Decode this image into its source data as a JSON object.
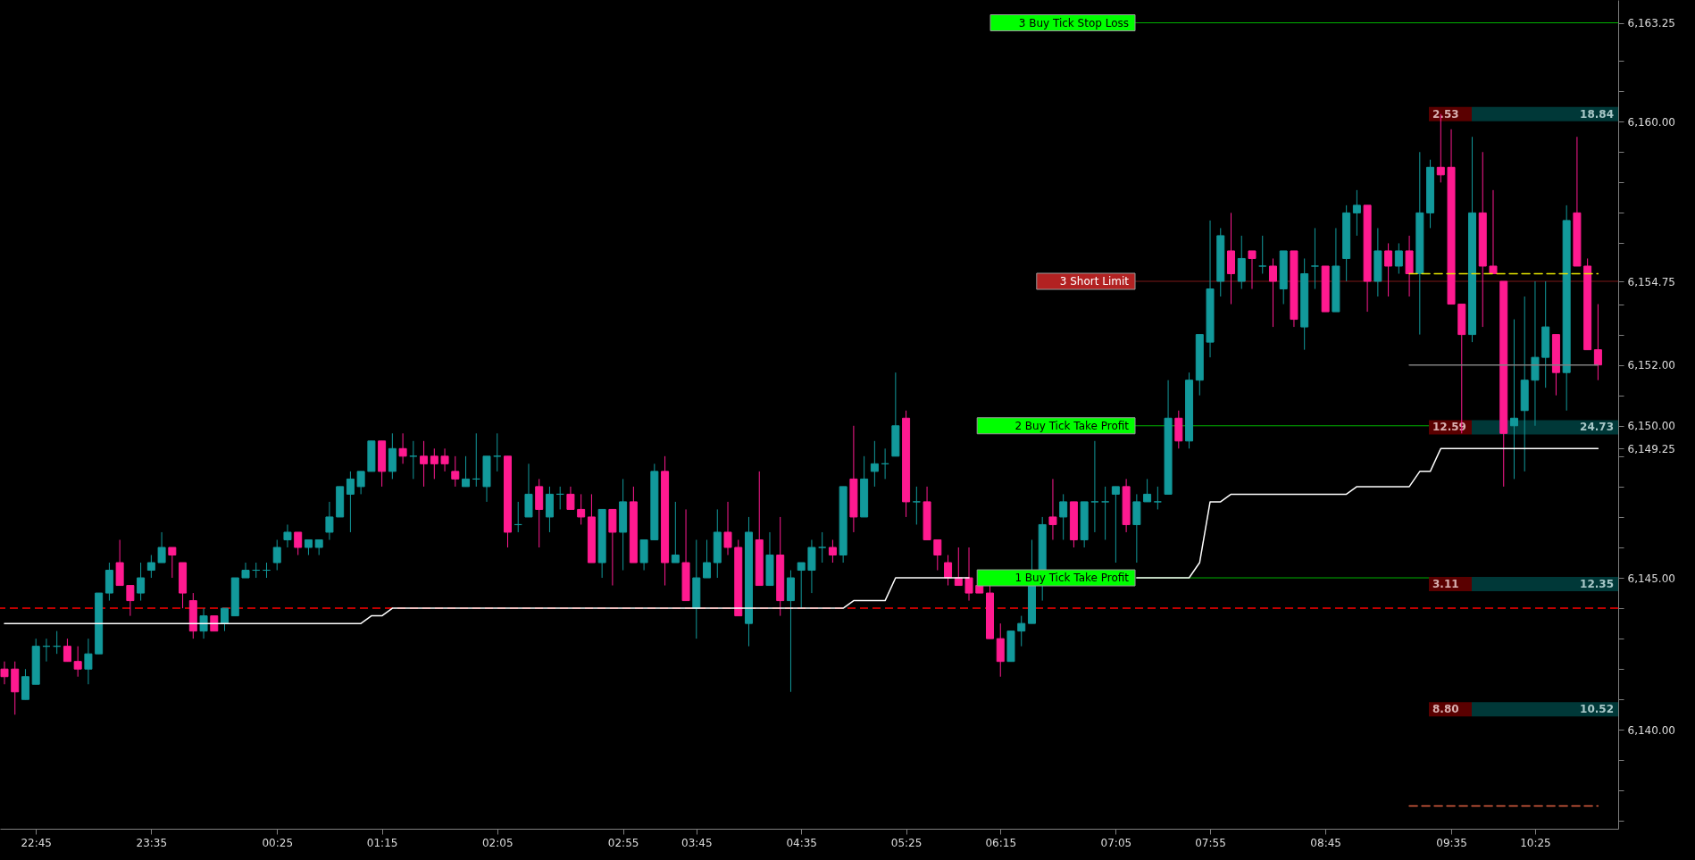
{
  "chart_data": {
    "type": "candlestick",
    "categories": [
      null,
      null,
      null,
      "22:45",
      null,
      null,
      null,
      null,
      null,
      null,
      null,
      null,
      null,
      null,
      "23:35",
      null,
      null,
      null,
      null,
      null,
      null,
      null,
      null,
      null,
      null,
      null,
      "00:25",
      null,
      null,
      null,
      null,
      null,
      null,
      null,
      null,
      null,
      "01:15",
      null,
      null,
      null,
      null,
      null,
      null,
      null,
      null,
      null,
      null,
      "02:05",
      null,
      null,
      null,
      null,
      null,
      null,
      null,
      null,
      null,
      null,
      null,
      "02:55",
      null,
      null,
      null,
      null,
      null,
      null,
      "03:45",
      null,
      null,
      null,
      null,
      null,
      null,
      null,
      null,
      null,
      "04:35",
      null,
      null,
      null,
      null,
      null,
      null,
      null,
      null,
      null,
      "05:25",
      null,
      null,
      null,
      null,
      null,
      null,
      null,
      null,
      "06:15",
      null,
      null,
      null,
      null,
      null,
      null,
      null,
      null,
      null,
      null,
      "07:05",
      null,
      null,
      null,
      null,
      null,
      null,
      null,
      null,
      "07:55",
      null,
      null,
      null,
      null,
      null,
      null,
      null,
      null,
      null,
      null,
      "08:45",
      null,
      null,
      null,
      null,
      null,
      null,
      null,
      null,
      null,
      null,
      null,
      "09:35",
      null,
      null,
      null,
      null,
      null,
      null,
      null,
      "10:25",
      null,
      null,
      null,
      null,
      null,
      null
    ],
    "ohlc": [
      [
        6142.0,
        6142.25,
        6141.5,
        6141.75
      ],
      [
        6142.0,
        6142.25,
        6140.5,
        6141.25
      ],
      [
        6141.0,
        6142.0,
        6141.0,
        6141.75
      ],
      [
        6141.5,
        6143.0,
        6141.5,
        6142.75
      ],
      [
        6142.75,
        6143.0,
        6142.25,
        6142.75
      ],
      [
        6142.75,
        6143.25,
        6142.5,
        6142.75
      ],
      [
        6142.75,
        6143.0,
        6142.25,
        6142.25
      ],
      [
        6142.25,
        6142.75,
        6141.75,
        6142.0
      ],
      [
        6142.0,
        6143.0,
        6141.5,
        6142.5
      ],
      [
        6142.5,
        6144.5,
        6142.5,
        6144.5
      ],
      [
        6144.5,
        6145.5,
        6144.25,
        6145.25
      ],
      [
        6145.5,
        6146.25,
        6144.75,
        6144.75
      ],
      [
        6144.75,
        6144.75,
        6143.75,
        6144.25
      ],
      [
        6144.5,
        6145.5,
        6144.25,
        6145.0
      ],
      [
        6145.25,
        6145.75,
        6145.0,
        6145.5
      ],
      [
        6145.5,
        6146.5,
        6145.5,
        6146.0
      ],
      [
        6146.0,
        6146.0,
        6145.0,
        6145.75
      ],
      [
        6145.5,
        6145.5,
        6144.0,
        6144.5
      ],
      [
        6144.25,
        6144.5,
        6143.0,
        6143.25
      ],
      [
        6143.25,
        6144.0,
        6143.0,
        6143.75
      ],
      [
        6143.75,
        6143.75,
        6143.25,
        6143.25
      ],
      [
        6143.5,
        6144.0,
        6143.25,
        6144.0
      ],
      [
        6143.75,
        6145.0,
        6143.75,
        6145.0
      ],
      [
        6145.0,
        6145.5,
        6145.0,
        6145.25
      ],
      [
        6145.25,
        6145.5,
        6145.0,
        6145.25
      ],
      [
        6145.25,
        6145.5,
        6145.0,
        6145.25
      ],
      [
        6145.5,
        6146.25,
        6145.25,
        6146.0
      ],
      [
        6146.25,
        6146.75,
        6146.0,
        6146.5
      ],
      [
        6146.5,
        6146.5,
        6145.75,
        6146.0
      ],
      [
        6146.0,
        6146.25,
        6145.75,
        6146.25
      ],
      [
        6146.0,
        6146.25,
        6145.75,
        6146.25
      ],
      [
        6146.5,
        6147.5,
        6146.25,
        6147.0
      ],
      [
        6147.0,
        6148.0,
        6147.0,
        6148.0
      ],
      [
        6147.75,
        6148.5,
        6146.5,
        6148.25
      ],
      [
        6148.0,
        6148.5,
        6147.75,
        6148.5
      ],
      [
        6148.5,
        6149.5,
        6148.5,
        6149.5
      ],
      [
        6149.5,
        6149.5,
        6148.0,
        6148.5
      ],
      [
        6148.5,
        6149.75,
        6148.25,
        6149.25
      ],
      [
        6149.25,
        6149.75,
        6148.75,
        6149.0
      ],
      [
        6149.0,
        6149.5,
        6148.25,
        6149.0
      ],
      [
        6149.0,
        6149.5,
        6148.0,
        6148.75
      ],
      [
        6149.0,
        6149.25,
        6148.25,
        6148.75
      ],
      [
        6149.0,
        6149.25,
        6148.5,
        6148.75
      ],
      [
        6148.5,
        6149.0,
        6148.0,
        6148.25
      ],
      [
        6148.0,
        6149.0,
        6148.0,
        6148.25
      ],
      [
        6148.25,
        6149.75,
        6148.0,
        6148.25
      ],
      [
        6148.0,
        6149.0,
        6147.5,
        6149.0
      ],
      [
        6149.0,
        6149.75,
        6148.5,
        6149.0
      ],
      [
        6149.0,
        6149.0,
        6146.0,
        6146.5
      ],
      [
        6146.75,
        6147.5,
        6146.5,
        6146.75
      ],
      [
        6147.0,
        6148.75,
        6147.0,
        6147.75
      ],
      [
        6148.0,
        6148.25,
        6146.0,
        6147.25
      ],
      [
        6147.0,
        6148.0,
        6146.5,
        6147.75
      ],
      [
        6147.75,
        6148.0,
        6147.25,
        6147.75
      ],
      [
        6147.75,
        6148.0,
        6147.25,
        6147.25
      ],
      [
        6147.25,
        6147.75,
        6146.75,
        6147.0
      ],
      [
        6147.0,
        6147.75,
        6145.5,
        6145.5
      ],
      [
        6145.5,
        6147.25,
        6145.0,
        6147.25
      ],
      [
        6147.25,
        6147.25,
        6144.75,
        6146.5
      ],
      [
        6146.5,
        6148.25,
        6145.25,
        6147.5
      ],
      [
        6147.5,
        6148.0,
        6145.5,
        6145.5
      ],
      [
        6145.5,
        6146.25,
        6145.25,
        6146.25
      ],
      [
        6146.25,
        6148.75,
        6146.25,
        6148.5
      ],
      [
        6148.5,
        6149.0,
        6144.75,
        6145.5
      ],
      [
        6145.5,
        6147.5,
        6145.5,
        6145.75
      ],
      [
        6145.5,
        6147.25,
        6144.25,
        6144.25
      ],
      [
        6144.0,
        6146.25,
        6143.0,
        6145.0
      ],
      [
        6145.0,
        6146.25,
        6145.0,
        6145.5
      ],
      [
        6145.5,
        6147.25,
        6145.0,
        6146.5
      ],
      [
        6146.5,
        6147.5,
        6145.75,
        6146.0
      ],
      [
        6146.0,
        6146.25,
        6143.75,
        6143.75
      ],
      [
        6143.5,
        6147.0,
        6142.75,
        6146.5
      ],
      [
        6146.25,
        6148.5,
        6144.75,
        6144.75
      ],
      [
        6144.75,
        6146.5,
        6144.75,
        6145.75
      ],
      [
        6145.75,
        6147.0,
        6143.75,
        6144.25
      ],
      [
        6144.25,
        6145.25,
        6141.25,
        6145.0
      ],
      [
        6145.25,
        6145.5,
        6144.0,
        6145.5
      ],
      [
        6145.25,
        6146.25,
        6144.5,
        6146.0
      ],
      [
        6146.0,
        6146.5,
        6145.5,
        6146.0
      ],
      [
        6146.0,
        6146.25,
        6145.5,
        6145.75
      ],
      [
        6145.75,
        6148.0,
        6145.5,
        6148.0
      ],
      [
        6148.25,
        6150.0,
        6146.5,
        6147.0
      ],
      [
        6147.0,
        6149.0,
        6147.0,
        6148.25
      ],
      [
        6148.5,
        6149.5,
        6148.0,
        6148.75
      ],
      [
        6148.75,
        6149.25,
        6148.25,
        6148.75
      ],
      [
        6149.0,
        6151.75,
        6149.0,
        6150.0
      ],
      [
        6150.25,
        6150.5,
        6147.0,
        6147.5
      ],
      [
        6147.5,
        6148.0,
        6146.75,
        6147.5
      ],
      [
        6147.5,
        6148.0,
        6146.25,
        6146.25
      ],
      [
        6146.25,
        6146.25,
        6145.25,
        6145.75
      ],
      [
        6145.5,
        6145.75,
        6144.75,
        6145.0
      ],
      [
        6145.0,
        6146.0,
        6144.75,
        6144.75
      ],
      [
        6145.0,
        6146.0,
        6144.25,
        6144.5
      ],
      [
        6144.75,
        6144.75,
        6144.5,
        6144.5
      ],
      [
        6144.5,
        6144.75,
        6143.0,
        6143.0
      ],
      [
        6143.0,
        6143.5,
        6141.75,
        6142.25
      ],
      [
        6142.25,
        6143.25,
        6142.25,
        6143.25
      ],
      [
        6143.25,
        6143.75,
        6142.75,
        6143.5
      ],
      [
        6143.5,
        6146.25,
        6143.5,
        6144.75
      ],
      [
        6144.75,
        6147.0,
        6144.25,
        6146.75
      ],
      [
        6147.0,
        6148.25,
        6146.25,
        6146.75
      ],
      [
        6147.0,
        6147.75,
        6146.25,
        6147.5
      ],
      [
        6147.5,
        6147.5,
        6146.0,
        6146.25
      ],
      [
        6146.25,
        6147.5,
        6146.0,
        6147.5
      ],
      [
        6147.5,
        6149.5,
        6146.5,
        6147.5
      ],
      [
        6147.5,
        6148.0,
        6146.25,
        6147.5
      ],
      [
        6147.75,
        6148.0,
        6145.5,
        6148.0
      ],
      [
        6148.0,
        6148.25,
        6146.5,
        6146.75
      ],
      [
        6146.75,
        6147.75,
        6145.5,
        6147.5
      ],
      [
        6147.5,
        6148.25,
        6147.5,
        6147.75
      ],
      [
        6147.5,
        6148.0,
        6147.25,
        6147.5
      ],
      [
        6147.75,
        6151.5,
        6147.75,
        6150.25
      ],
      [
        6150.25,
        6150.5,
        6149.25,
        6149.5
      ],
      [
        6149.5,
        6151.75,
        6149.25,
        6151.5
      ],
      [
        6151.5,
        6153.0,
        6151.0,
        6153.0
      ],
      [
        6152.75,
        6156.75,
        6152.25,
        6154.5
      ],
      [
        6154.75,
        6156.5,
        6154.25,
        6156.25
      ],
      [
        6155.75,
        6157.0,
        6154.0,
        6155.0
      ],
      [
        6154.75,
        6156.25,
        6154.5,
        6155.5
      ],
      [
        6155.75,
        6155.75,
        6154.5,
        6155.5
      ],
      [
        6155.25,
        6156.25,
        6155.0,
        6155.25
      ],
      [
        6155.25,
        6155.5,
        6153.25,
        6154.75
      ],
      [
        6154.5,
        6155.75,
        6154.0,
        6155.75
      ],
      [
        6155.75,
        6155.75,
        6153.25,
        6153.5
      ],
      [
        6153.25,
        6155.5,
        6152.5,
        6155.0
      ],
      [
        6155.25,
        6156.5,
        6154.5,
        6155.25
      ],
      [
        6155.25,
        6155.25,
        6153.75,
        6153.75
      ],
      [
        6153.75,
        6156.5,
        6153.75,
        6155.25
      ],
      [
        6155.5,
        6157.25,
        6154.75,
        6157.0
      ],
      [
        6157.0,
        6157.75,
        6156.25,
        6157.25
      ],
      [
        6157.25,
        6157.25,
        6153.75,
        6154.75
      ],
      [
        6154.75,
        6156.5,
        6154.25,
        6155.75
      ],
      [
        6155.75,
        6156.0,
        6154.25,
        6155.25
      ],
      [
        6155.25,
        6156.0,
        6155.0,
        6155.75
      ],
      [
        6155.75,
        6156.25,
        6154.25,
        6155.0
      ],
      [
        6155.0,
        6159.0,
        6153.0,
        6157.0
      ],
      [
        6157.0,
        6158.75,
        6156.5,
        6158.5
      ],
      [
        6158.5,
        6160.25,
        6158.0,
        6158.25
      ],
      [
        6158.5,
        6159.75,
        6154.0,
        6154.0
      ],
      [
        6154.0,
        6154.0,
        6149.75,
        6153.0
      ],
      [
        6153.0,
        6159.5,
        6152.75,
        6157.0
      ],
      [
        6157.0,
        6159.0,
        6153.25,
        6155.25
      ],
      [
        6155.25,
        6157.75,
        6155.0,
        6155.0
      ],
      [
        6154.75,
        6154.75,
        6148.0,
        6149.75
      ],
      [
        6150.0,
        6153.5,
        6148.25,
        6150.25
      ],
      [
        6150.5,
        6154.25,
        6148.5,
        6151.5
      ],
      [
        6151.5,
        6154.75,
        6150.0,
        6152.25
      ],
      [
        6152.25,
        6154.75,
        6151.25,
        6153.25
      ],
      [
        6153.0,
        6153.0,
        6151.0,
        6151.75
      ],
      [
        6151.75,
        6157.25,
        6150.5,
        6156.75
      ],
      [
        6157.0,
        6159.5,
        6155.25,
        6155.25
      ],
      [
        6155.25,
        6155.5,
        6152.5,
        6152.5
      ],
      [
        6152.5,
        6154.0,
        6151.5,
        6152.0
      ]
    ],
    "series": [
      {
        "type": "line",
        "color": "#ffffff",
        "values": [
          6143.5,
          6143.5,
          6143.5,
          6143.5,
          6143.5,
          6143.5,
          6143.5,
          6143.5,
          6143.5,
          6143.5,
          6143.5,
          6143.5,
          6143.5,
          6143.5,
          6143.5,
          6143.5,
          6143.5,
          6143.5,
          6143.5,
          6143.5,
          6143.5,
          6143.5,
          6143.5,
          6143.5,
          6143.5,
          6143.5,
          6143.5,
          6143.5,
          6143.5,
          6143.5,
          6143.5,
          6143.5,
          6143.5,
          6143.5,
          6143.5,
          6143.75,
          6143.75,
          6144,
          6144,
          6144,
          6144,
          6144,
          6144,
          6144,
          6144,
          6144,
          6144,
          6144,
          6144,
          6144,
          6144,
          6144,
          6144,
          6144,
          6144,
          6144,
          6144,
          6144,
          6144,
          6144,
          6144,
          6144,
          6144,
          6144,
          6144,
          6144,
          6144,
          6144,
          6144,
          6144,
          6144,
          6144,
          6144,
          6144,
          6144,
          6144,
          6144,
          6144,
          6144,
          6144,
          6144,
          6144.25,
          6144.25,
          6144.25,
          6144.25,
          6145,
          6145,
          6145,
          6145,
          6145,
          6145,
          6145,
          6145,
          null,
          null,
          null,
          null,
          null,
          null,
          null,
          null,
          null,
          null,
          null,
          null,
          null,
          null,
          null,
          6145,
          6145,
          6145,
          6145,
          6145,
          6145,
          6145.5,
          6147.5,
          6147.5,
          6147.75,
          6147.75,
          6147.75,
          6147.75,
          6147.75,
          6147.75,
          6147.75,
          6147.75,
          6147.75,
          6147.75,
          6147.75,
          6147.75,
          6148,
          6148,
          6148,
          6148,
          6148,
          6148,
          6148.5,
          6148.5,
          6149.25,
          6149.25,
          6149.25,
          6149.25,
          6149.25,
          6149.25,
          6149.25,
          6149.25,
          6149.25,
          6149.25,
          6149.25,
          6149.25,
          6149.25,
          6149.25,
          6149.25,
          6149.25
        ]
      },
      {
        "type": "line",
        "color": "#e6e600",
        "line_style": "dashed",
        "values": [
          null,
          null,
          null,
          null,
          null,
          null,
          null,
          null,
          null,
          null,
          null,
          null,
          null,
          null,
          null,
          null,
          null,
          null,
          null,
          null,
          null,
          null,
          null,
          null,
          null,
          null,
          null,
          null,
          null,
          null,
          null,
          null,
          null,
          null,
          null,
          null,
          null,
          null,
          null,
          null,
          null,
          null,
          null,
          null,
          null,
          null,
          null,
          null,
          null,
          null,
          null,
          null,
          null,
          null,
          null,
          null,
          null,
          null,
          null,
          null,
          null,
          null,
          null,
          null,
          null,
          null,
          null,
          null,
          null,
          null,
          null,
          null,
          null,
          null,
          null,
          null,
          null,
          null,
          null,
          null,
          null,
          null,
          null,
          null,
          null,
          null,
          null,
          null,
          null,
          null,
          null,
          null,
          null,
          null,
          null,
          null,
          null,
          null,
          null,
          null,
          null,
          null,
          null,
          null,
          null,
          null,
          null,
          null,
          null,
          null,
          null,
          null,
          null,
          null,
          null,
          null,
          null,
          null,
          null,
          null,
          null,
          null,
          null,
          null,
          null,
          null,
          null,
          null,
          null,
          null,
          null,
          null,
          null,
          null,
          6155,
          6155,
          6155,
          6155,
          6155,
          6155,
          6155,
          6155,
          6155,
          6155,
          6155,
          6155,
          6155,
          6155,
          6155,
          6155,
          6155,
          6155,
          6155
        ]
      },
      {
        "type": "line",
        "color": "#808080",
        "values": [
          null,
          null,
          null,
          null,
          null,
          null,
          null,
          null,
          null,
          null,
          null,
          null,
          null,
          null,
          null,
          null,
          null,
          null,
          null,
          null,
          null,
          null,
          null,
          null,
          null,
          null,
          null,
          null,
          null,
          null,
          null,
          null,
          null,
          null,
          null,
          null,
          null,
          null,
          null,
          null,
          null,
          null,
          null,
          null,
          null,
          null,
          null,
          null,
          null,
          null,
          null,
          null,
          null,
          null,
          null,
          null,
          null,
          null,
          null,
          null,
          null,
          null,
          null,
          null,
          null,
          null,
          null,
          null,
          null,
          null,
          null,
          null,
          null,
          null,
          null,
          null,
          null,
          null,
          null,
          null,
          null,
          null,
          null,
          null,
          null,
          null,
          null,
          null,
          null,
          null,
          null,
          null,
          null,
          null,
          null,
          null,
          null,
          null,
          null,
          null,
          null,
          null,
          null,
          null,
          null,
          null,
          null,
          null,
          null,
          null,
          null,
          null,
          null,
          null,
          null,
          null,
          null,
          null,
          null,
          null,
          null,
          null,
          null,
          null,
          null,
          null,
          null,
          null,
          null,
          null,
          null,
          null,
          null,
          null,
          6152,
          6152,
          6152,
          6152,
          6152,
          6152,
          6152,
          6152,
          6152,
          6152,
          6152,
          6152,
          6152,
          6152,
          6152,
          6152,
          6152,
          6152,
          6152
        ]
      },
      {
        "type": "line",
        "color": "#e06040",
        "line_style": "dashed",
        "values": [
          null,
          null,
          null,
          null,
          null,
          null,
          null,
          null,
          null,
          null,
          null,
          null,
          null,
          null,
          null,
          null,
          null,
          null,
          null,
          null,
          null,
          null,
          null,
          null,
          null,
          null,
          null,
          null,
          null,
          null,
          null,
          null,
          null,
          null,
          null,
          null,
          null,
          null,
          null,
          null,
          null,
          null,
          null,
          null,
          null,
          null,
          null,
          null,
          null,
          null,
          null,
          null,
          null,
          null,
          null,
          null,
          null,
          null,
          null,
          null,
          null,
          null,
          null,
          null,
          null,
          null,
          null,
          null,
          null,
          null,
          null,
          null,
          null,
          null,
          null,
          null,
          null,
          null,
          null,
          null,
          null,
          null,
          null,
          null,
          null,
          null,
          null,
          null,
          null,
          null,
          null,
          null,
          null,
          null,
          null,
          null,
          null,
          null,
          null,
          null,
          null,
          null,
          null,
          null,
          null,
          null,
          null,
          null,
          null,
          null,
          null,
          null,
          null,
          null,
          null,
          null,
          null,
          null,
          null,
          null,
          null,
          null,
          null,
          null,
          null,
          null,
          null,
          null,
          null,
          null,
          null,
          null,
          null,
          null,
          6137.5,
          6137.5,
          6137.5,
          6137.5,
          6137.5,
          6137.5,
          6137.5,
          6137.5,
          6137.5,
          6137.5,
          6137.5,
          6137.5,
          6137.5,
          6137.5,
          6137.5,
          6137.5,
          6137.5,
          6137.5,
          6137.5
        ]
      }
    ],
    "ylim": [
      6136.75,
      6164
    ],
    "yticks": [
      {
        "value": 6137,
        "label": null
      },
      {
        "value": 6138,
        "label": null
      },
      {
        "value": 6139,
        "label": null
      },
      {
        "value": 6140,
        "label": "6,140.00"
      },
      {
        "value": 6141,
        "label": null
      },
      {
        "value": 6142,
        "label": null
      },
      {
        "value": 6143,
        "label": null
      },
      {
        "value": 6144,
        "label": null
      },
      {
        "value": 6145,
        "label": "6,145.00"
      },
      {
        "value": 6146,
        "label": null
      },
      {
        "value": 6147,
        "label": null
      },
      {
        "value": 6148,
        "label": null
      },
      {
        "value": 6149,
        "label": null
      },
      {
        "value": 6149.25,
        "label": "6,149.25"
      },
      {
        "value": 6150,
        "label": "6,150.00"
      },
      {
        "value": 6151,
        "label": null
      },
      {
        "value": 6152,
        "label": "6,152.00"
      },
      {
        "value": 6153,
        "label": null
      },
      {
        "value": 6154,
        "label": null
      },
      {
        "value": 6154.75,
        "label": "6,154.75"
      },
      {
        "value": 6156,
        "label": null
      },
      {
        "value": 6157,
        "label": null
      },
      {
        "value": 6158,
        "label": null
      },
      {
        "value": 6159,
        "label": null
      },
      {
        "value": 6160,
        "label": "6,160.00"
      },
      {
        "value": 6161,
        "label": null
      },
      {
        "value": 6162,
        "label": null
      },
      {
        "value": 6163.25,
        "label": "6,163.25"
      }
    ],
    "ref_lines": [
      {
        "axis": "y",
        "value": 6163.25,
        "label": "3 Buy Tick Stop Loss",
        "color": "#00ff00"
      },
      {
        "axis": "y",
        "value": 6154.75,
        "label": "3 Short Limit",
        "color": "#b22222"
      },
      {
        "axis": "y",
        "value": 6150,
        "label": "2 Buy Tick Take Profit",
        "color": "#00ff00"
      },
      {
        "axis": "y",
        "value": 6145,
        "label": "1 Buy Tick Take Profit",
        "color": "#00ff00"
      },
      {
        "axis": "y",
        "value": 6144,
        "color": "#c00000",
        "line_style": "dashed"
      }
    ],
    "annotations": [
      "2.53",
      "18.84",
      "12.59",
      "24.73",
      "3.11",
      "12.35",
      "8.80",
      "10.52"
    ]
  }
}
